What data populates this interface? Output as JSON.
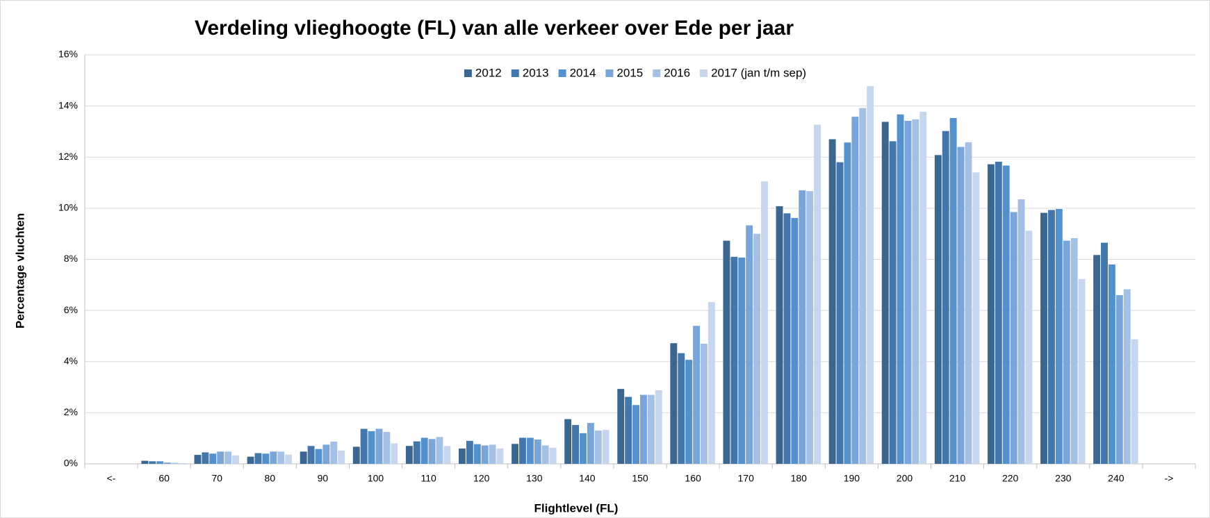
{
  "chart_data": {
    "type": "bar",
    "title": "Verdeling vlieghoogte (FL) van alle verkeer over Ede per jaar",
    "x_label": "Flightlevel (FL)",
    "y_label": "Percentage vluchten",
    "categories": [
      "<-",
      "60",
      "70",
      "80",
      "90",
      "100",
      "110",
      "120",
      "130",
      "140",
      "150",
      "160",
      "170",
      "180",
      "190",
      "200",
      "210",
      "220",
      "230",
      "240",
      "->"
    ],
    "series": [
      {
        "name": "2012",
        "color": "#3a6690",
        "values": [
          0,
          0.12,
          0.35,
          0.28,
          0.48,
          0.67,
          0.7,
          0.6,
          0.78,
          1.75,
          2.93,
          4.72,
          8.73,
          10.08,
          12.7,
          13.38,
          12.08,
          11.72,
          9.82,
          8.17,
          0
        ]
      },
      {
        "name": "2013",
        "color": "#4376ab",
        "values": [
          0,
          0.1,
          0.45,
          0.42,
          0.7,
          1.37,
          0.88,
          0.9,
          1.02,
          1.52,
          2.62,
          4.33,
          8.1,
          9.8,
          11.8,
          12.62,
          13.02,
          11.82,
          9.93,
          8.65,
          0
        ]
      },
      {
        "name": "2014",
        "color": "#5390cc",
        "values": [
          0,
          0.1,
          0.4,
          0.4,
          0.58,
          1.28,
          1.02,
          0.77,
          1.02,
          1.2,
          2.3,
          4.07,
          8.07,
          9.62,
          12.57,
          13.67,
          13.53,
          11.67,
          9.97,
          7.8,
          0
        ]
      },
      {
        "name": "2015",
        "color": "#7aa5d8",
        "values": [
          0,
          0.05,
          0.48,
          0.48,
          0.75,
          1.37,
          0.97,
          0.72,
          0.95,
          1.6,
          2.7,
          5.4,
          9.33,
          10.7,
          13.58,
          13.42,
          12.4,
          9.85,
          8.73,
          6.6,
          0
        ]
      },
      {
        "name": "2016",
        "color": "#a4c0e4",
        "values": [
          0,
          0.04,
          0.48,
          0.48,
          0.87,
          1.25,
          1.05,
          0.75,
          0.72,
          1.3,
          2.7,
          4.7,
          9.0,
          10.67,
          13.92,
          13.48,
          12.58,
          10.35,
          8.83,
          6.83,
          0
        ]
      },
      {
        "name": "2017 (jan t/m sep)",
        "color": "#c6d6ee",
        "values": [
          0,
          0.03,
          0.33,
          0.36,
          0.52,
          0.8,
          0.7,
          0.6,
          0.63,
          1.33,
          2.88,
          6.33,
          11.05,
          13.27,
          14.78,
          13.77,
          11.4,
          9.12,
          7.23,
          4.87,
          0
        ]
      }
    ],
    "ylim": [
      0,
      16
    ],
    "yticks": [
      {
        "value": 0,
        "label": "0%"
      },
      {
        "value": 2,
        "label": "2%"
      },
      {
        "value": 4,
        "label": "4%"
      },
      {
        "value": 6,
        "label": "6%"
      },
      {
        "value": 8,
        "label": "8%"
      },
      {
        "value": 10,
        "label": "10%"
      },
      {
        "value": 12,
        "label": "12%"
      },
      {
        "value": 14,
        "label": "14%"
      },
      {
        "value": 16,
        "label": "16%"
      }
    ],
    "grid": true,
    "legend": "top"
  }
}
